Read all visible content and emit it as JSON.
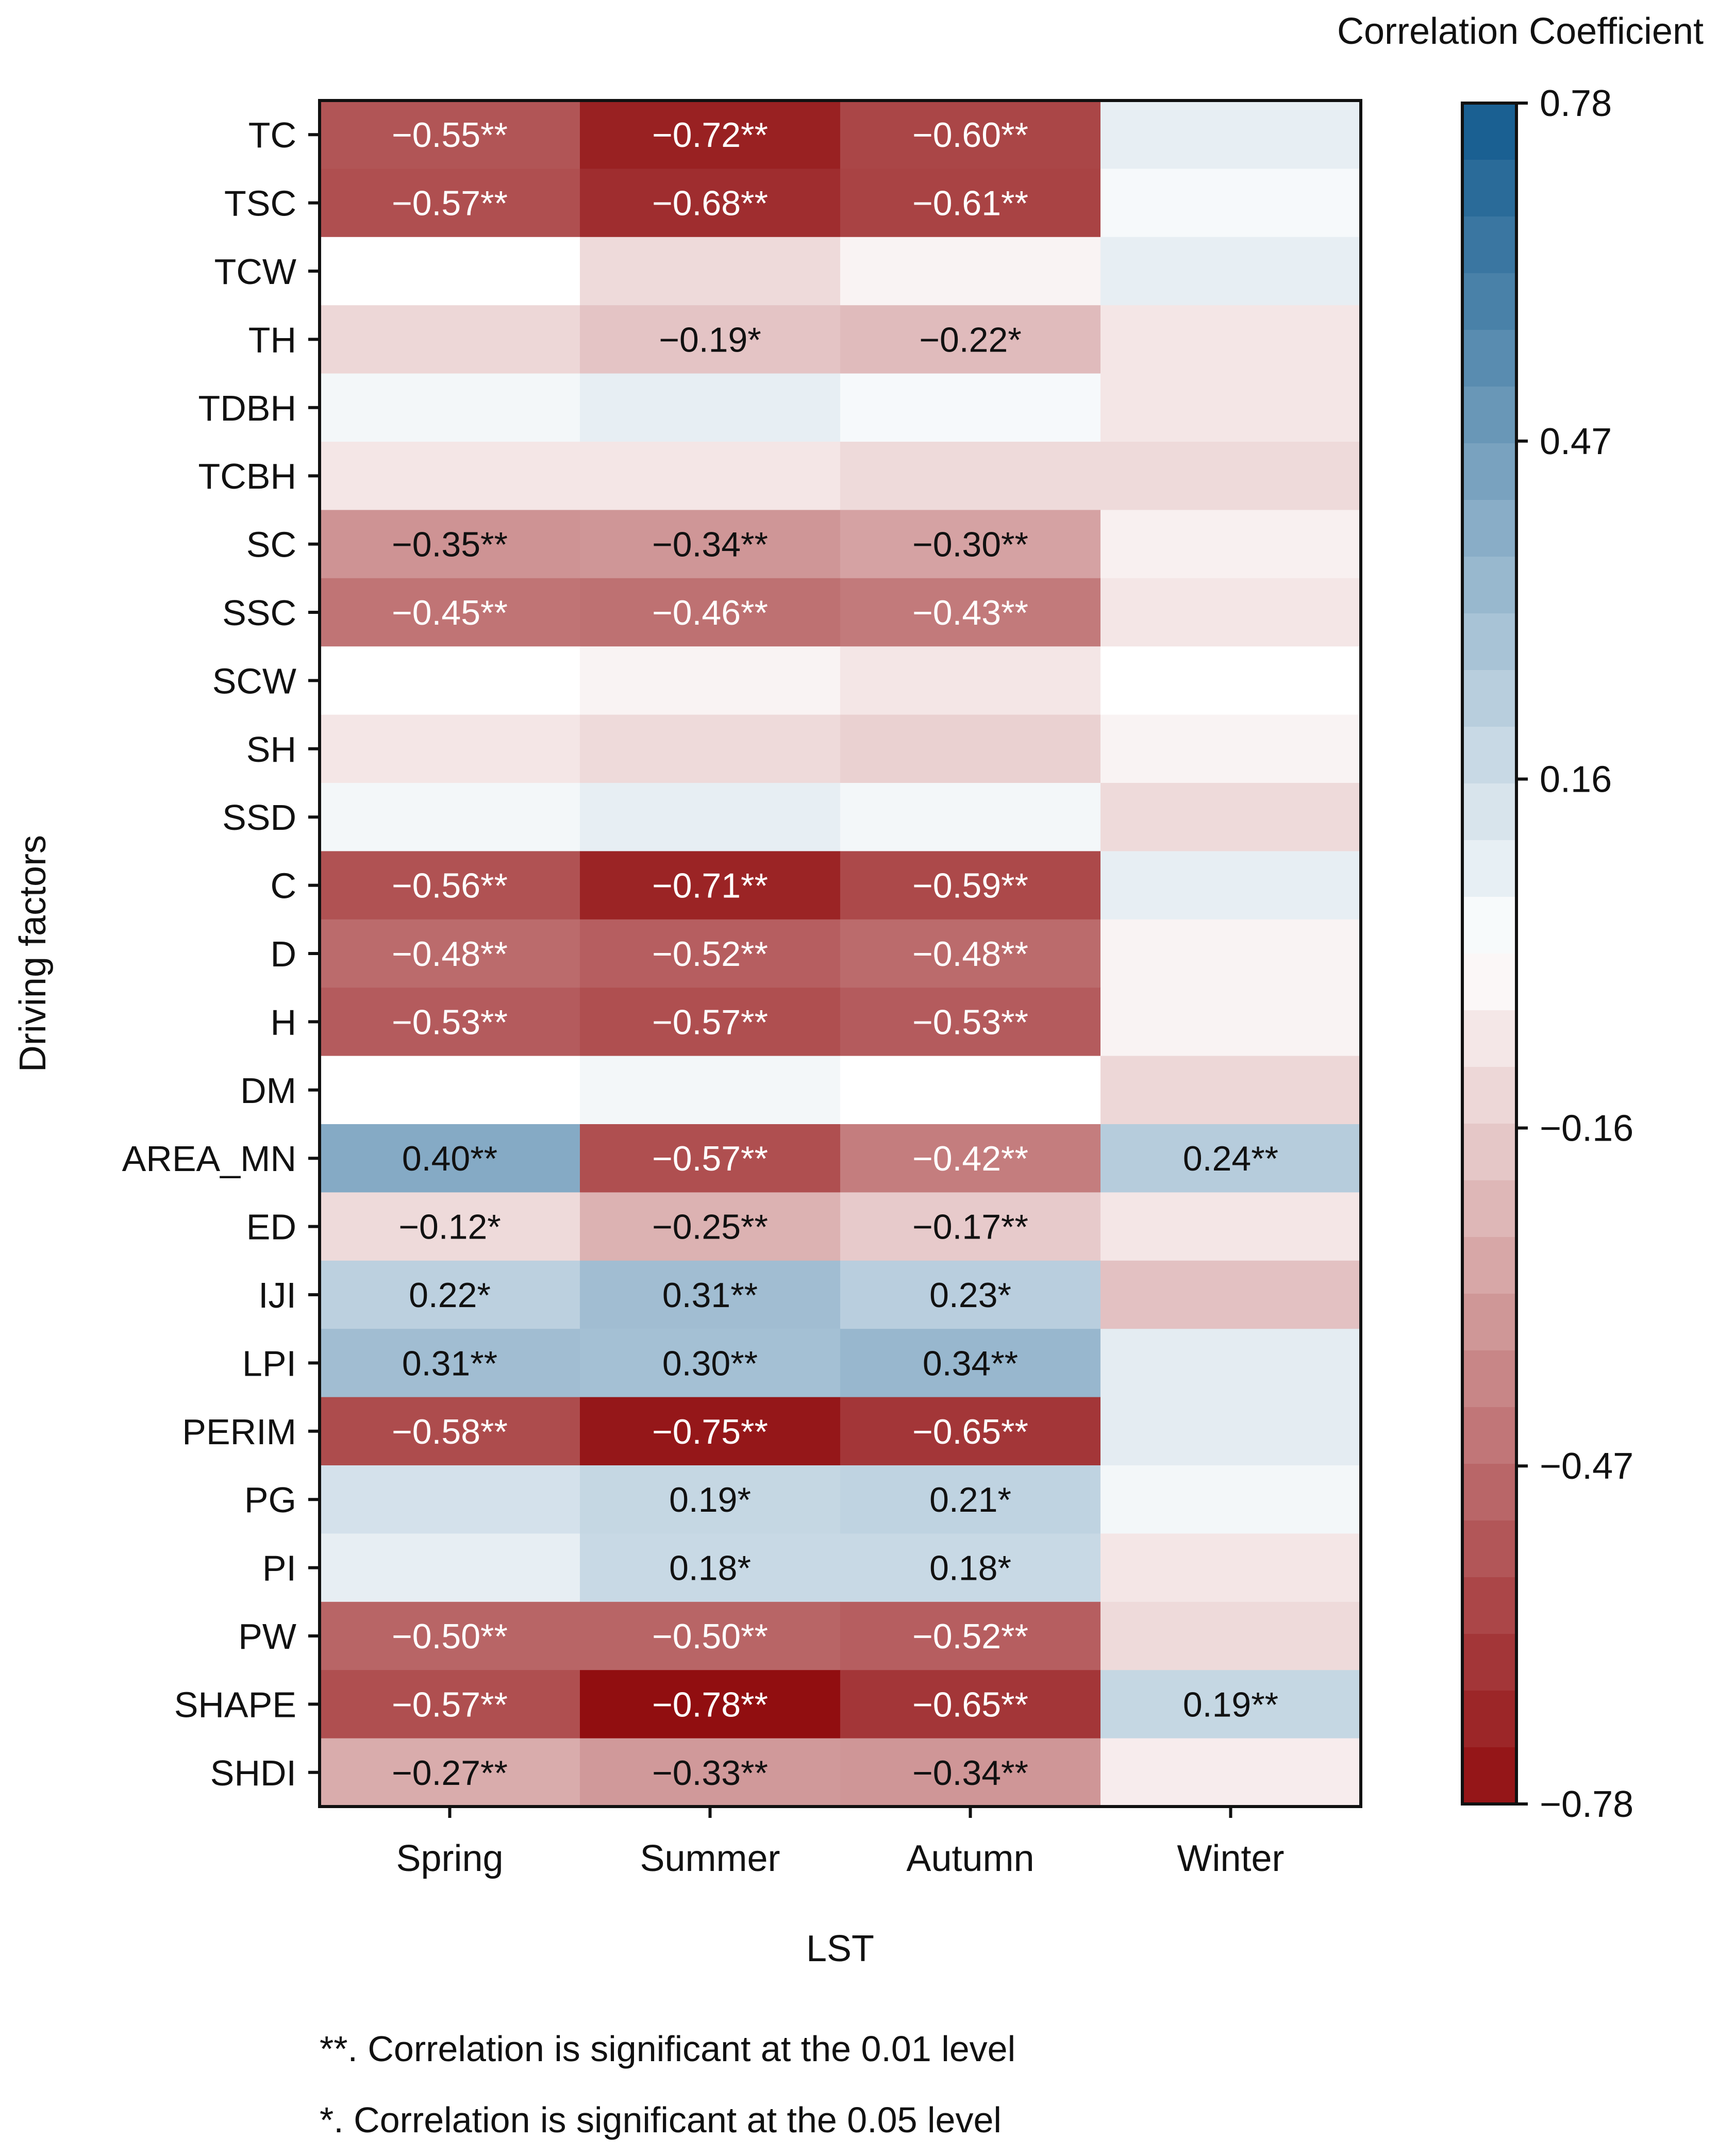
{
  "chart_data": {
    "type": "heatmap",
    "title": "",
    "xlabel": "LST",
    "ylabel": "Driving factors",
    "columns": [
      "Spring",
      "Summer",
      "Autumn",
      "Winter"
    ],
    "rows": [
      "TC",
      "TSC",
      "TCW",
      "TH",
      "TDBH",
      "TCBH",
      "SC",
      "SSC",
      "SCW",
      "SH",
      "SSD",
      "C",
      "D",
      "H",
      "DM",
      "AREA_MN",
      "ED",
      "IJI",
      "LPI",
      "PERIM",
      "PG",
      "PI",
      "PW",
      "SHAPE",
      "SHDI"
    ],
    "values": [
      [
        -0.55,
        -0.72,
        -0.6,
        0.08
      ],
      [
        -0.57,
        -0.68,
        -0.61,
        0.03
      ],
      [
        0.0,
        -0.12,
        -0.04,
        0.08
      ],
      [
        -0.13,
        -0.19,
        -0.22,
        -0.08
      ],
      [
        0.04,
        0.08,
        0.03,
        -0.08
      ],
      [
        -0.08,
        -0.08,
        -0.12,
        -0.12
      ],
      [
        -0.35,
        -0.34,
        -0.3,
        -0.05
      ],
      [
        -0.45,
        -0.46,
        -0.43,
        -0.08
      ],
      [
        0.0,
        -0.04,
        -0.08,
        0.0
      ],
      [
        -0.08,
        -0.12,
        -0.15,
        -0.04
      ],
      [
        0.04,
        0.08,
        0.04,
        -0.12
      ],
      [
        -0.56,
        -0.71,
        -0.59,
        0.08
      ],
      [
        -0.48,
        -0.52,
        -0.48,
        -0.04
      ],
      [
        -0.53,
        -0.57,
        -0.53,
        -0.04
      ],
      [
        0.0,
        0.04,
        0.0,
        -0.13
      ],
      [
        0.4,
        -0.57,
        -0.42,
        0.24
      ],
      [
        -0.12,
        -0.25,
        -0.17,
        -0.08
      ],
      [
        0.22,
        0.31,
        0.23,
        -0.2
      ],
      [
        0.31,
        0.3,
        0.34,
        0.09
      ],
      [
        -0.58,
        -0.75,
        -0.65,
        0.09
      ],
      [
        0.14,
        0.19,
        0.21,
        0.04
      ],
      [
        0.08,
        0.18,
        0.18,
        -0.08
      ],
      [
        -0.5,
        -0.5,
        -0.52,
        -0.12
      ],
      [
        -0.57,
        -0.78,
        -0.65,
        0.19
      ],
      [
        -0.27,
        -0.33,
        -0.34,
        -0.06
      ]
    ],
    "labels": [
      [
        "−0.55**",
        "−0.72**",
        "−0.60**",
        ""
      ],
      [
        "−0.57**",
        "−0.68**",
        "−0.61**",
        ""
      ],
      [
        "",
        "",
        "",
        ""
      ],
      [
        "",
        "−0.19*",
        "−0.22*",
        ""
      ],
      [
        "",
        "",
        "",
        ""
      ],
      [
        "",
        "",
        "",
        ""
      ],
      [
        "−0.35**",
        "−0.34**",
        "−0.30**",
        ""
      ],
      [
        "−0.45**",
        "−0.46**",
        "−0.43**",
        ""
      ],
      [
        "",
        "",
        "",
        ""
      ],
      [
        "",
        "",
        "",
        ""
      ],
      [
        "",
        "",
        "",
        ""
      ],
      [
        "−0.56**",
        "−0.71**",
        "−0.59**",
        ""
      ],
      [
        "−0.48**",
        "−0.52**",
        "−0.48**",
        ""
      ],
      [
        "−0.53**",
        "−0.57**",
        "−0.53**",
        ""
      ],
      [
        "",
        "",
        "",
        ""
      ],
      [
        "0.40**",
        "−0.57**",
        "−0.42**",
        "0.24**"
      ],
      [
        "−0.12*",
        "−0.25**",
        "−0.17**",
        ""
      ],
      [
        "0.22*",
        "0.31**",
        "0.23*",
        ""
      ],
      [
        "0.31**",
        "0.30**",
        "0.34**",
        ""
      ],
      [
        "−0.58**",
        "−0.75**",
        "−0.65**",
        ""
      ],
      [
        "",
        "0.19*",
        "0.21*",
        ""
      ],
      [
        "",
        "0.18*",
        "0.18*",
        ""
      ],
      [
        "−0.50**",
        "−0.50**",
        "−0.52**",
        ""
      ],
      [
        "−0.57**",
        "−0.78**",
        "−0.65**",
        "0.19**"
      ],
      [
        "−0.27**",
        "−0.33**",
        "−0.34**",
        ""
      ]
    ],
    "colorbar": {
      "title": "Correlation Coefficient",
      "min": -0.78,
      "max": 0.78,
      "levels": 30,
      "ticks": [
        "0.78",
        "0.47",
        "0.16",
        "−0.16",
        "−0.47",
        "−0.78"
      ],
      "tick_values": [
        0.78,
        0.47,
        0.16,
        -0.16,
        -0.47,
        -0.78
      ]
    },
    "colors": {
      "neg_max": "#910e10",
      "neutral": "#ffffff",
      "pos_max": "#125a8e"
    }
  },
  "footnotes": [
    "**. Correlation is significant at the 0.01 level",
    "*. Correlation is significant at the 0.05 level"
  ]
}
